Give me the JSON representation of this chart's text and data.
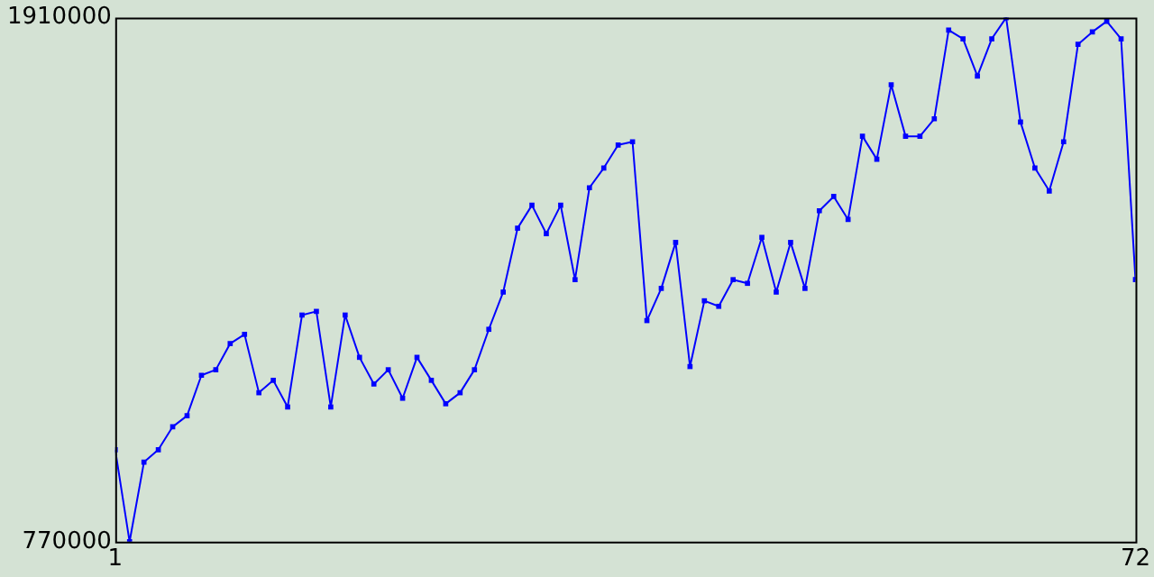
{
  "chart_data": {
    "type": "line",
    "x": [
      1,
      2,
      3,
      4,
      5,
      6,
      7,
      8,
      9,
      10,
      11,
      12,
      13,
      14,
      15,
      16,
      17,
      18,
      19,
      20,
      21,
      22,
      23,
      24,
      25,
      26,
      27,
      28,
      29,
      30,
      31,
      32,
      33,
      34,
      35,
      36,
      37,
      38,
      39,
      40,
      41,
      42,
      43,
      44,
      45,
      46,
      47,
      48,
      49,
      50,
      51,
      52,
      53,
      54,
      55,
      56,
      57,
      58,
      59,
      60,
      61,
      62,
      63,
      64,
      65,
      66,
      67,
      68,
      69,
      70,
      71,
      72
    ],
    "series": [
      {
        "color": "#0000ff",
        "values": [
          970000,
          770000,
          943000,
          970000,
          1020000,
          1044000,
          1132000,
          1144000,
          1201000,
          1221000,
          1094000,
          1121000,
          1063000,
          1263000,
          1271000,
          1063000,
          1263000,
          1171000,
          1113000,
          1144000,
          1082000,
          1171000,
          1121000,
          1070000,
          1094000,
          1144000,
          1232000,
          1313000,
          1452000,
          1502000,
          1440000,
          1502000,
          1340000,
          1540000,
          1583000,
          1633000,
          1640000,
          1251000,
          1321000,
          1421000,
          1151000,
          1294000,
          1282000,
          1340000,
          1332000,
          1432000,
          1313000,
          1421000,
          1321000,
          1490000,
          1521000,
          1471000,
          1652000,
          1602000,
          1764000,
          1652000,
          1652000,
          1690000,
          1883000,
          1864000,
          1783000,
          1864000,
          1910000,
          1683000,
          1583000,
          1533000,
          1640000,
          1852000,
          1879000,
          1902000,
          1864000,
          1340000
        ]
      }
    ],
    "xlim": [
      1,
      72
    ],
    "xticks": [
      1,
      72
    ],
    "ylim": [
      770000,
      1910000
    ],
    "yticks": [
      770000,
      1910000
    ],
    "grid": false,
    "legend": false,
    "marker": "square",
    "line_style": "solid"
  }
}
